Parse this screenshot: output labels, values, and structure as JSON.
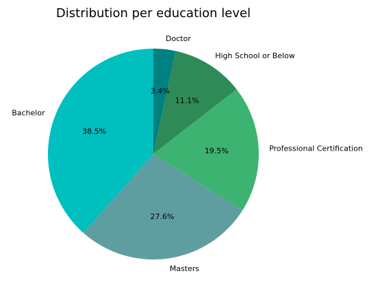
{
  "chart_data": {
    "type": "pie",
    "title": "Distribution per education level",
    "start_angle_deg": 90,
    "direction": "clockwise",
    "slices": [
      {
        "label": "Doctor",
        "value": 3.4,
        "pct_text": "3.4%",
        "color": "#008080"
      },
      {
        "label": "High School or Below",
        "value": 11.1,
        "pct_text": "11.1%",
        "color": "#2e8b57"
      },
      {
        "label": "Professional Certification",
        "value": 19.5,
        "pct_text": "19.5%",
        "color": "#3cb371"
      },
      {
        "label": "Masters",
        "value": 27.6,
        "pct_text": "27.6%",
        "color": "#5f9ea0"
      },
      {
        "label": "Bachelor",
        "value": 38.5,
        "pct_text": "38.5%",
        "color": "#00bfbf"
      }
    ]
  }
}
